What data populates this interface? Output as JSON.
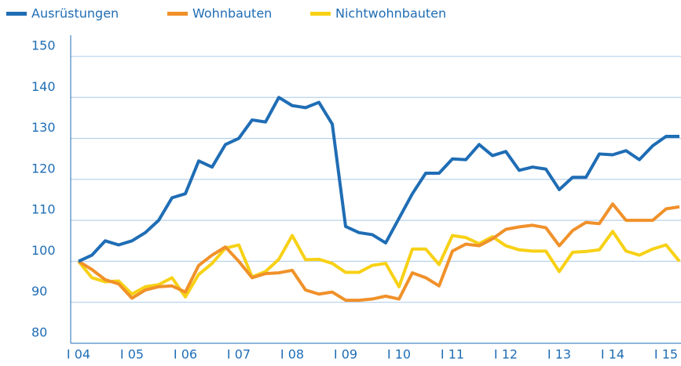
{
  "chart_data": {
    "type": "line",
    "categories": [
      "I 04",
      null,
      null,
      null,
      "I 05",
      null,
      null,
      null,
      "I 06",
      null,
      null,
      null,
      "I 07",
      null,
      null,
      null,
      "I 08",
      null,
      null,
      null,
      "I 09",
      null,
      null,
      null,
      "I 10",
      null,
      null,
      null,
      "I 11",
      null,
      null,
      null,
      "I 12",
      null,
      null,
      null,
      "I 13",
      null,
      null,
      null,
      "I 14",
      null,
      null,
      null,
      "I 15",
      null
    ],
    "series": [
      {
        "name": "Ausrüstungen",
        "color": "#1f6db5",
        "values": [
          100,
          101.5,
          105,
          104,
          105,
          107,
          110,
          115.5,
          116.5,
          124.5,
          123,
          128.5,
          130,
          134.5,
          134,
          140,
          138,
          137.5,
          138.8,
          133.5,
          108.5,
          107,
          106.5,
          104.5,
          110.5,
          116.5,
          121.5,
          121.5,
          125,
          124.8,
          128.5,
          125.8,
          126.8,
          122.2,
          123,
          122.5,
          117.5,
          120.5,
          120.5,
          126.2,
          126,
          127,
          124.8,
          128.2,
          130.5,
          130.5
        ]
      },
      {
        "name": "Wohnbauten",
        "color": "#f0912a",
        "values": [
          100,
          98,
          95.5,
          94.5,
          91,
          93,
          93.8,
          94,
          92.5,
          99,
          101.5,
          103.5,
          100,
          96,
          97,
          97.2,
          97.8,
          93,
          92,
          92.5,
          90.5,
          90.5,
          90.8,
          91.5,
          90.8,
          97.2,
          96,
          94,
          102.5,
          104.2,
          103.8,
          105.5,
          107.8,
          108.4,
          108.8,
          108.2,
          103.8,
          107.5,
          109.5,
          109.2,
          114,
          110,
          110,
          110,
          112.8,
          113.3
        ]
      },
      {
        "name": "Nichtwohnbauten",
        "color": "#f7d116",
        "values": [
          100,
          96,
          95,
          95.2,
          92,
          93.8,
          94.3,
          96,
          91.3,
          96.8,
          99.5,
          103.2,
          104,
          96.2,
          97.5,
          100.5,
          106.3,
          100.4,
          100.5,
          99.5,
          97.3,
          97.3,
          99,
          99.5,
          93.8,
          103,
          103,
          99.2,
          106.3,
          105.8,
          104.3,
          106,
          103.8,
          102.8,
          102.5,
          102.5,
          97.5,
          102.2,
          102.4,
          102.8,
          107.3,
          102.5,
          101.5,
          103,
          104,
          100
        ]
      }
    ],
    "ylim": [
      80,
      150
    ],
    "yticks": [
      80,
      90,
      100,
      110,
      120,
      130,
      140,
      150
    ],
    "grid": true
  }
}
